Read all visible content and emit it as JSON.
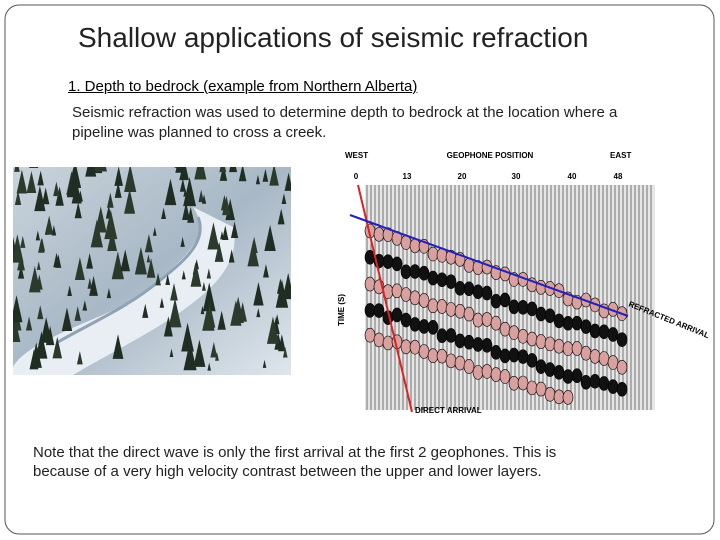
{
  "slide": {
    "title": "Shallow applications of seismic refraction",
    "subtitle": "1. Depth to bedrock (example from Northern Alberta)",
    "paragraph": [
      "Seismic refraction was used to determine depth to bedrock at the location where a",
      "pipeline was planned to cross a creek."
    ],
    "note": [
      "Note that the direct wave is only the first arrival at the first 2 geophones. This is",
      "because of a very high velocity contrast between the upper and lower layers."
    ],
    "figure": {
      "west": "WEST",
      "geophone_position": "GEOPHONE POSITION",
      "east": "EAST",
      "positions": [
        "0",
        "13",
        "20",
        "30",
        "40",
        "48"
      ],
      "time_axis": "TIME (S)",
      "refracted_arrival": "REFRACTED ARRIVAL",
      "direct_arrival": "DIRECT ARRIVAL"
    }
  }
}
